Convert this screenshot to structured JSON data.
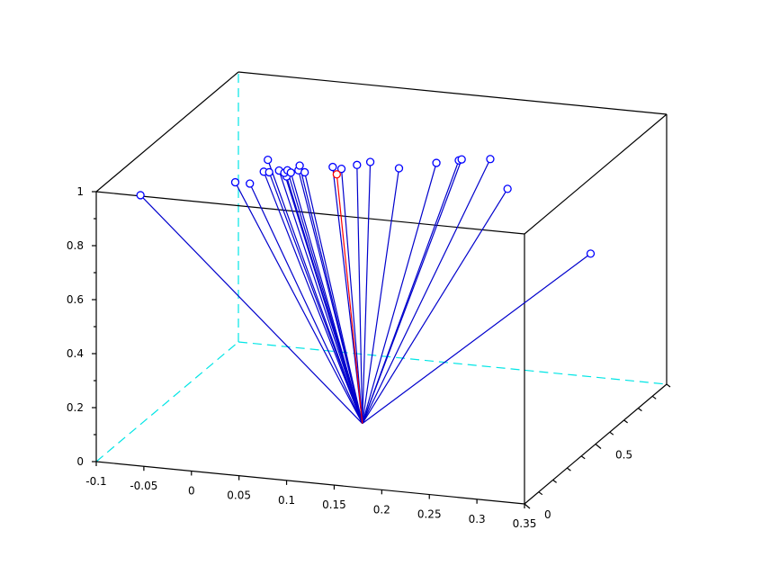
{
  "chart_data": {
    "type": "3d-stem",
    "xlim": [
      -0.1,
      0.35
    ],
    "ylim": [
      0,
      1
    ],
    "zlim": [
      0,
      1
    ],
    "x_ticks": [
      "-0.1",
      "-0.05",
      "0",
      "0.05",
      "0.1",
      "0.15",
      "0.2",
      "0.25",
      "0.3",
      "0.35"
    ],
    "y_ticks": [
      "0",
      "0.5"
    ],
    "z_ticks": [
      "0",
      "0.2",
      "0.4",
      "0.6",
      "0.8",
      "1"
    ],
    "grid": false,
    "origin": {
      "x": 0.1077,
      "y": 0.4815,
      "z": 0
    },
    "colors": {
      "axes": "#000000",
      "hidden_axes": "#00e5e5",
      "stems": "#0000cc",
      "highlight": "#ff0000",
      "markers": "#0000ff"
    },
    "points": [
      {
        "x": -0.0575,
        "y": 0.0265,
        "z": 0.99,
        "highlight": false
      },
      {
        "x": 0.0353,
        "y": 0.072,
        "z": 1.05,
        "highlight": false
      },
      {
        "x": 0.0463,
        "y": 0.1011,
        "z": 1.036,
        "highlight": false
      },
      {
        "x": 0.0693,
        "y": 0.045,
        "z": 1.113,
        "highlight": false
      },
      {
        "x": 0.0726,
        "y": 0.061,
        "z": 1.105,
        "highlight": false
      },
      {
        "x": 0.0765,
        "y": 0.0256,
        "z": 1.168,
        "highlight": false
      },
      {
        "x": 0.0821,
        "y": 0.0668,
        "z": 1.112,
        "highlight": false
      },
      {
        "x": 0.0795,
        "y": 0.1372,
        "z": 1.058,
        "highlight": false
      },
      {
        "x": 0.0852,
        "y": 0.0834,
        "z": 1.097,
        "highlight": false
      },
      {
        "x": 0.09,
        "y": 0.0728,
        "z": 1.113,
        "highlight": false
      },
      {
        "x": 0.091,
        "y": 0.0904,
        "z": 1.097,
        "highlight": false
      },
      {
        "x": 0.1016,
        "y": 0.073,
        "z": 1.117,
        "highlight": false
      },
      {
        "x": 0.103,
        "y": 0.1072,
        "z": 1.095,
        "highlight": false
      },
      {
        "x": 0.1056,
        "y": 0.0547,
        "z": 1.144,
        "highlight": false
      },
      {
        "x": 0.1274,
        "y": 0.1411,
        "z": 1.108,
        "highlight": false
      },
      {
        "x": 0.1313,
        "y": 0.1436,
        "z": 1.081,
        "highlight": true
      },
      {
        "x": 0.1389,
        "y": 0.1255,
        "z": 1.112,
        "highlight": false
      },
      {
        "x": 0.1564,
        "y": 0.1177,
        "z": 1.136,
        "highlight": false
      },
      {
        "x": 0.1746,
        "y": 0.0894,
        "z": 1.166,
        "highlight": false
      },
      {
        "x": 0.1854,
        "y": 0.219,
        "z": 1.089,
        "highlight": false
      },
      {
        "x": 0.2282,
        "y": 0.1957,
        "z": 1.134,
        "highlight": false
      },
      {
        "x": 0.2528,
        "y": 0.1886,
        "z": 1.155,
        "highlight": false
      },
      {
        "x": 0.2577,
        "y": 0.176,
        "z": 1.166,
        "highlight": false
      },
      {
        "x": 0.2794,
        "y": 0.2319,
        "z": 1.15,
        "highlight": false
      },
      {
        "x": 0.2656,
        "y": 0.4458,
        "z": 0.94,
        "highlight": false
      },
      {
        "x": 0.3449,
        "y": 0.4993,
        "z": 0.704,
        "highlight": false
      }
    ]
  }
}
